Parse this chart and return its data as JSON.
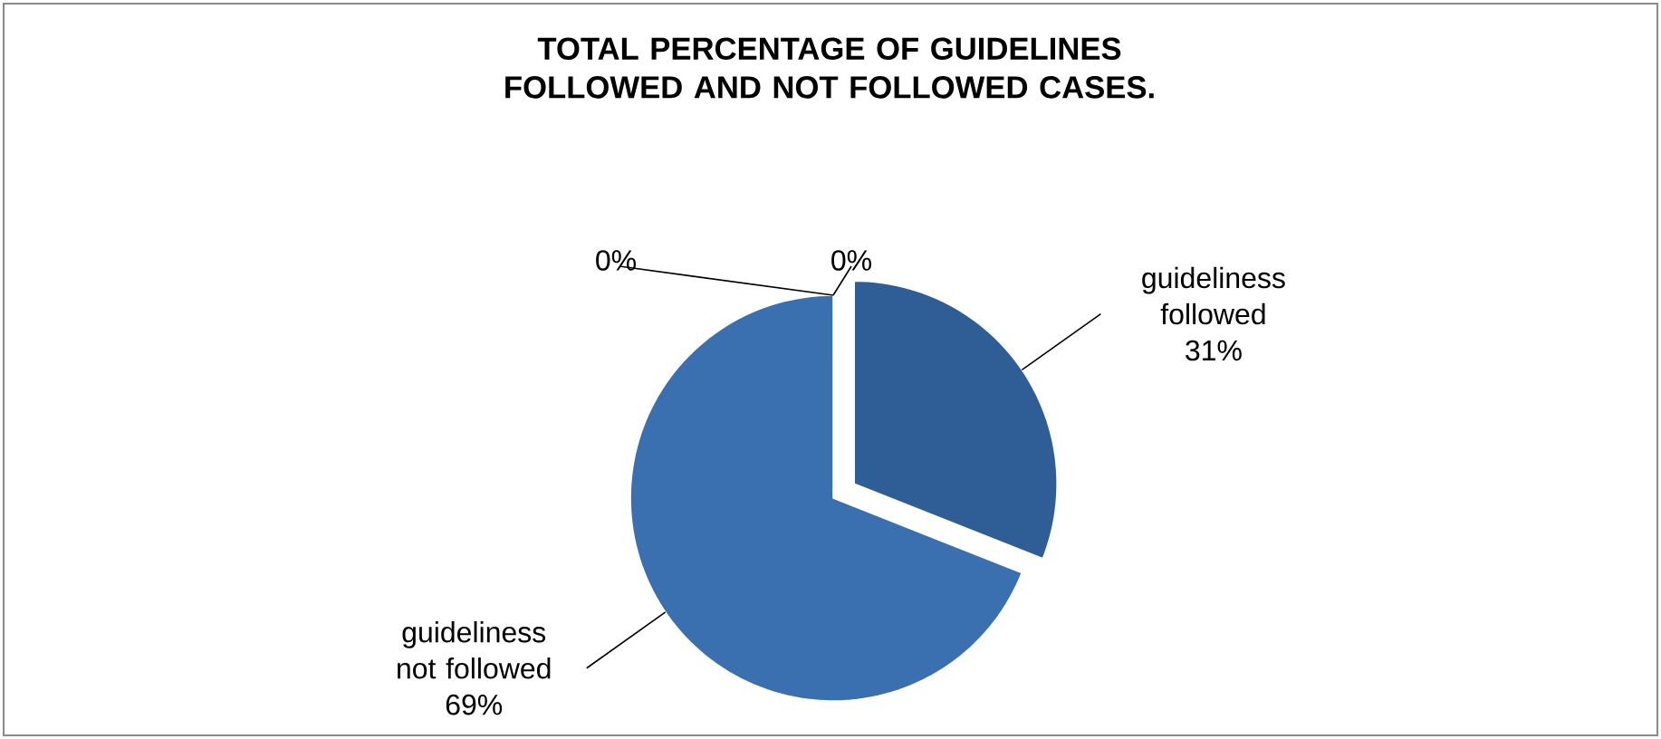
{
  "chart_data": {
    "type": "pie",
    "title": "TOTAL PERCENTAGE OF GUIDELINES FOLLOWED AND NOT FOLLOWED CASES.",
    "categories": [
      "guideliness followed",
      "guideliness not followed",
      null,
      null
    ],
    "values": [
      31,
      69,
      0,
      0
    ],
    "value_labels": [
      "31%",
      "69%",
      "0%",
      "0%"
    ],
    "colors": [
      "#2f5e96",
      "#3a6fb0",
      "#3a6fb0",
      "#3a6fb0"
    ]
  }
}
